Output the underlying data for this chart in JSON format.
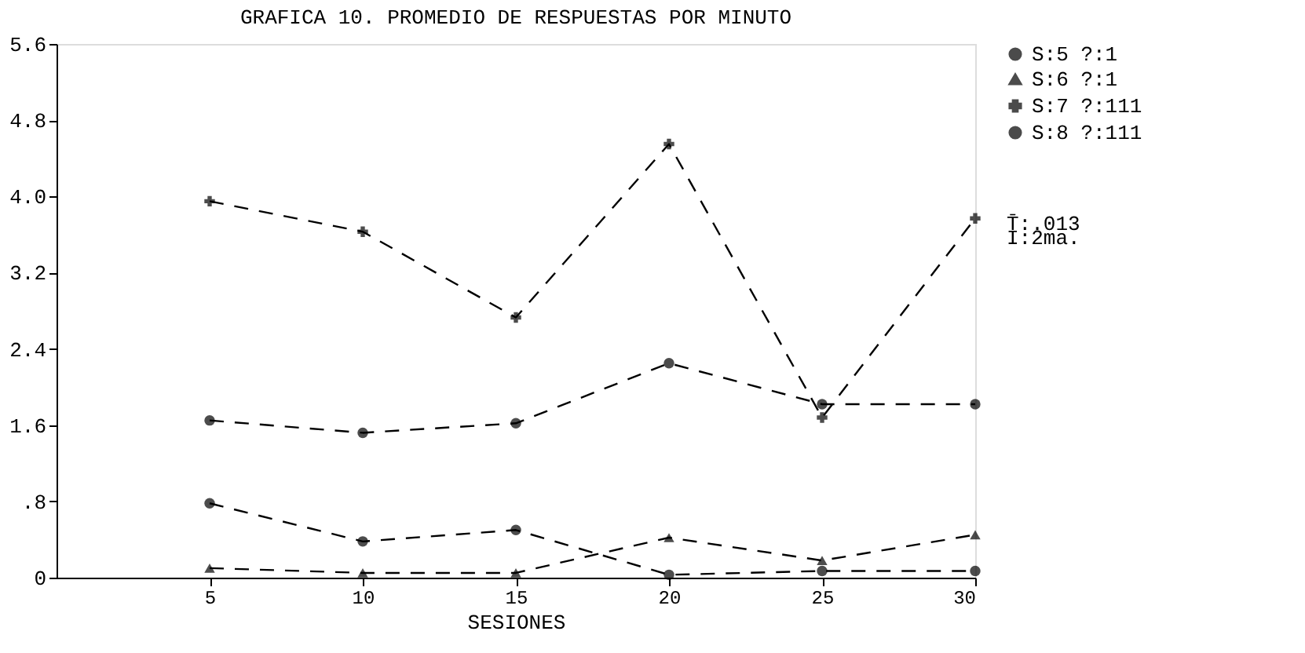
{
  "chart_data": {
    "type": "line",
    "title": "GRAFICA 10. PROMEDIO DE RESPUESTAS POR MINUTO",
    "xlabel": "SESIONES",
    "x": [
      5,
      10,
      15,
      20,
      25,
      30
    ],
    "series": [
      {
        "name": "S:5 ?:1",
        "color": "#000000",
        "marker": "circle",
        "values": [
          1.65,
          1.52,
          1.62,
          2.25,
          1.82,
          1.82
        ]
      },
      {
        "name": "S:6 ?:1",
        "color": "#000000",
        "marker": "triangle",
        "values": [
          0.1,
          0.05,
          0.05,
          0.42,
          0.18,
          0.45
        ]
      },
      {
        "name": "S:7 ?:111",
        "color": "#000000",
        "marker": "cross",
        "values": [
          3.95,
          3.63,
          2.73,
          4.55,
          1.68,
          3.77
        ]
      },
      {
        "name": "S:8 ?:111",
        "color": "#000000",
        "marker": "circle",
        "values": [
          0.78,
          0.38,
          0.5,
          0.03,
          0.07,
          0.07
        ]
      }
    ],
    "xlim": [
      0,
      30
    ],
    "xticks": [
      5,
      10,
      15,
      20,
      25,
      30
    ],
    "ylim": [
      0,
      5.6
    ],
    "yticks": [
      0,
      {
        "value": 0.8,
        "label": ".8"
      },
      1.6,
      2.4,
      3.2,
      4.8,
      {
        "value": 4.0,
        "label": "4.0"
      },
      5.6
    ],
    "line_style": "dashed",
    "grid": false,
    "legend": "right",
    "annotations": [
      "T̄:.013",
      "I:2ma."
    ]
  }
}
